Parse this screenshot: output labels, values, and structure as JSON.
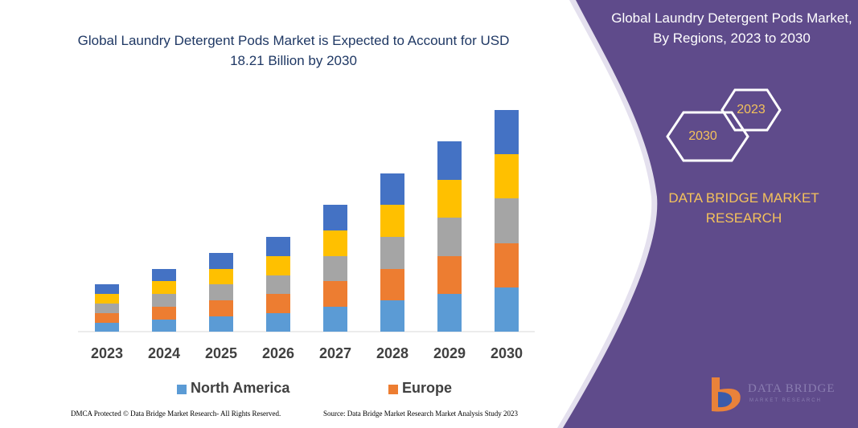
{
  "chart_data": {
    "type": "bar",
    "stacked": true,
    "title": "Global Laundry Detergent Pods Market is Expected to Account for USD 18.21 Billion by 2030",
    "categories": [
      "2023",
      "2024",
      "2025",
      "2026",
      "2027",
      "2028",
      "2029",
      "2030"
    ],
    "series": [
      {
        "name": "North America",
        "color": "#5b9bd5",
        "values": [
          11,
          15,
          19,
          23,
          31,
          39,
          47,
          55
        ]
      },
      {
        "name": "Europe",
        "color": "#ed7d31",
        "values": [
          12,
          16,
          20,
          24,
          32,
          39,
          47,
          55
        ]
      },
      {
        "color": "#a5a5a5",
        "values": [
          12,
          16,
          20,
          23,
          31,
          40,
          48,
          56
        ]
      },
      {
        "color": "#ffc000",
        "values": [
          12,
          16,
          19,
          24,
          32,
          40,
          47,
          55
        ]
      },
      {
        "color": "#4472c4",
        "values": [
          12,
          15,
          20,
          24,
          32,
          39,
          48,
          55
        ]
      }
    ]
  },
  "side_panel": {
    "title": "Global Laundry Detergent Pods Market, By Regions, 2023 to 2030",
    "hexagons": [
      "2023",
      "2030"
    ],
    "brand": "DATA BRIDGE MARKET RESEARCH",
    "logo": [
      "DATA BRIDGE",
      "MARKET RESEARCH"
    ]
  },
  "footer": {
    "left": "DMCA Protected © Data Bridge Market Research- All Rights Reserved.",
    "right": "Source: Data Bridge Market Research Market Analysis Study 2023"
  }
}
